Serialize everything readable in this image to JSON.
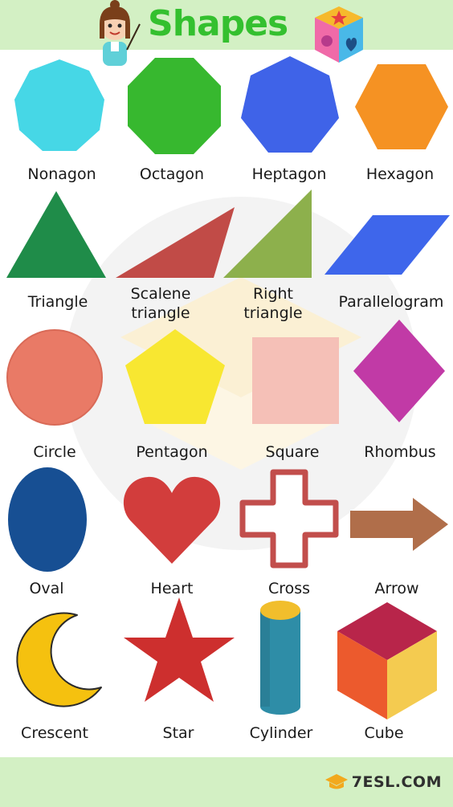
{
  "title": "Shapes",
  "brand": "7ESL.COM",
  "colors": {
    "header_bg": "#d3f0c4",
    "title_green": "#34c02f",
    "nonagon": "#46d7e6",
    "octagon": "#37b82f",
    "heptagon": "#3f63e8",
    "hexagon": "#f59223",
    "triangle": "#1f8c49",
    "scalene": "#c14b47",
    "right_triangle": "#8db04c",
    "parallelogram": "#3e66eb",
    "circle": "#e97a66",
    "pentagon": "#f8e731",
    "square": "#f5c0b7",
    "rhombus": "#c13aa6",
    "oval": "#174f93",
    "heart": "#d23d3c",
    "cross": "#c24e4c",
    "arrow": "#b06e4a",
    "crescent": "#f5c10f",
    "star": "#cd2f2e",
    "cylinder": "#2e8da7",
    "cylinder_top": "#f1be2c",
    "cube_top": "#b8254a",
    "cube_left": "#ec5a2d",
    "cube_right": "#f4cb50"
  },
  "shapes": [
    {
      "name": "nonagon",
      "label": "Nonagon"
    },
    {
      "name": "octagon",
      "label": "Octagon"
    },
    {
      "name": "heptagon",
      "label": "Heptagon"
    },
    {
      "name": "hexagon",
      "label": "Hexagon"
    },
    {
      "name": "triangle",
      "label": "Triangle"
    },
    {
      "name": "scalene-triangle",
      "label": "Scalene\ntriangle"
    },
    {
      "name": "right-triangle",
      "label": "Right\ntriangle"
    },
    {
      "name": "parallelogram",
      "label": "Parallelogram"
    },
    {
      "name": "circle",
      "label": "Circle"
    },
    {
      "name": "pentagon",
      "label": "Pentagon"
    },
    {
      "name": "square",
      "label": "Square"
    },
    {
      "name": "rhombus",
      "label": "Rhombus"
    },
    {
      "name": "oval",
      "label": "Oval"
    },
    {
      "name": "heart",
      "label": "Heart"
    },
    {
      "name": "cross",
      "label": "Cross"
    },
    {
      "name": "arrow",
      "label": "Arrow"
    },
    {
      "name": "crescent",
      "label": "Crescent"
    },
    {
      "name": "star",
      "label": "Star"
    },
    {
      "name": "cylinder",
      "label": "Cylinder"
    },
    {
      "name": "cube",
      "label": "Cube"
    }
  ]
}
